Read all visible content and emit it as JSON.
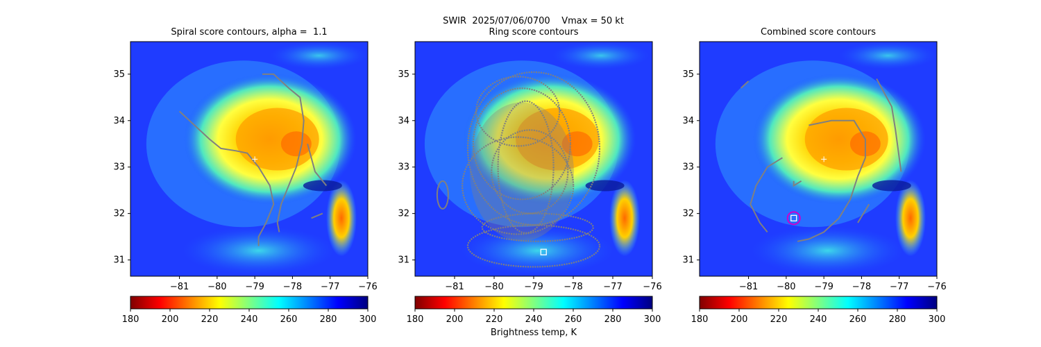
{
  "figure_title_line1": "SWIR  2025/07/06/0700    Vmax = 50 kt",
  "colorbar_label": "Brightness temp, K",
  "colors": {
    "contour": "#808080",
    "center_marker": "#ffffff",
    "ring_marker": "#cc00cc",
    "colormap": [
      "#800000",
      "#ff0000",
      "#ff8000",
      "#ffff00",
      "#80ff80",
      "#00ffff",
      "#0080ff",
      "#0000ff",
      "#000080"
    ]
  },
  "chart_data": [
    {
      "type": "heatmap",
      "title": "Spiral score contours, alpha =  1.1",
      "xlim": [
        -82.3,
        -76.0
      ],
      "ylim": [
        30.65,
        35.7
      ],
      "x_ticks": [
        "−81",
        "−80",
        "−79",
        "−78",
        "−77",
        "−76"
      ],
      "y_ticks": [
        "31",
        "32",
        "33",
        "34",
        "35"
      ],
      "colorbar": {
        "range": [
          180,
          300
        ],
        "ticks": [
          "180",
          "200",
          "220",
          "240",
          "260",
          "280",
          "300"
        ]
      },
      "center_plus": {
        "lon": -79.0,
        "lat": 33.17
      },
      "contours": [
        [
          [
            -81.0,
            34.2
          ],
          [
            -80.6,
            33.9
          ],
          [
            -80.2,
            33.6
          ],
          [
            -79.9,
            33.4
          ],
          [
            -79.5,
            33.35
          ],
          [
            -79.2,
            33.3
          ],
          [
            -78.9,
            33.0
          ],
          [
            -78.6,
            32.6
          ],
          [
            -78.5,
            32.2
          ],
          [
            -78.7,
            31.8
          ],
          [
            -78.9,
            31.5
          ],
          [
            -78.9,
            31.3
          ]
        ],
        [
          [
            -78.8,
            35.0
          ],
          [
            -78.5,
            35.0
          ],
          [
            -78.1,
            34.7
          ],
          [
            -77.8,
            34.5
          ],
          [
            -77.7,
            34.0
          ],
          [
            -77.75,
            33.5
          ],
          [
            -77.9,
            33.0
          ],
          [
            -78.1,
            32.6
          ],
          [
            -78.3,
            32.2
          ],
          [
            -78.4,
            31.8
          ],
          [
            -78.35,
            31.6
          ]
        ],
        [
          [
            -77.6,
            33.5
          ],
          [
            -77.4,
            32.9
          ],
          [
            -77.1,
            32.6
          ]
        ],
        [
          [
            -77.2,
            32.0
          ],
          [
            -77.5,
            31.9
          ]
        ]
      ]
    },
    {
      "type": "heatmap",
      "title": "Ring score contours",
      "xlim": [
        -82.0,
        -76.0
      ],
      "ylim": [
        30.65,
        35.7
      ],
      "x_ticks": [
        "−81",
        "−80",
        "−79",
        "−78",
        "−77",
        "−76"
      ],
      "y_ticks": [
        "31",
        "32",
        "33",
        "34",
        "35"
      ],
      "colorbar": {
        "range": [
          180,
          300
        ],
        "ticks": [
          "180",
          "200",
          "220",
          "240",
          "260",
          "280",
          "300"
        ]
      },
      "center_square": {
        "lon": -78.75,
        "lat": 31.17
      }
    },
    {
      "type": "heatmap",
      "title": "Combined score contours",
      "xlim": [
        -82.3,
        -76.0
      ],
      "ylim": [
        30.65,
        35.7
      ],
      "x_ticks": [
        "−81",
        "−80",
        "−79",
        "−78",
        "−77",
        "−76"
      ],
      "y_ticks": [
        "31",
        "32",
        "33",
        "34",
        "35"
      ],
      "colorbar": {
        "range": [
          180,
          300
        ],
        "ticks": [
          "180",
          "200",
          "220",
          "240",
          "260",
          "280",
          "300"
        ]
      },
      "center_plus": {
        "lon": -79.0,
        "lat": 33.17
      },
      "center_square": {
        "lon": -79.8,
        "lat": 31.9
      },
      "contours": [
        [
          [
            -80.1,
            33.2
          ],
          [
            -80.5,
            33.0
          ],
          [
            -80.8,
            32.6
          ],
          [
            -80.95,
            32.2
          ],
          [
            -80.7,
            31.8
          ],
          [
            -80.5,
            31.6
          ]
        ],
        [
          [
            -79.4,
            33.9
          ],
          [
            -78.8,
            34.0
          ],
          [
            -78.2,
            34.0
          ],
          [
            -77.9,
            33.6
          ],
          [
            -77.9,
            33.2
          ],
          [
            -78.1,
            32.8
          ],
          [
            -78.3,
            32.3
          ],
          [
            -78.6,
            31.9
          ],
          [
            -79.0,
            31.6
          ],
          [
            -79.4,
            31.45
          ],
          [
            -79.7,
            31.4
          ]
        ],
        [
          [
            -77.6,
            34.9
          ],
          [
            -77.2,
            34.3
          ],
          [
            -77.1,
            33.8
          ],
          [
            -77.0,
            33.2
          ],
          [
            -76.95,
            32.9
          ]
        ],
        [
          [
            -79.6,
            32.7
          ],
          [
            -79.8,
            32.6
          ],
          [
            -79.8,
            32.7
          ]
        ],
        [
          [
            -81.2,
            34.7
          ],
          [
            -81.0,
            34.85
          ]
        ],
        [
          [
            -77.8,
            32.2
          ],
          [
            -78.1,
            31.8
          ]
        ]
      ]
    }
  ]
}
